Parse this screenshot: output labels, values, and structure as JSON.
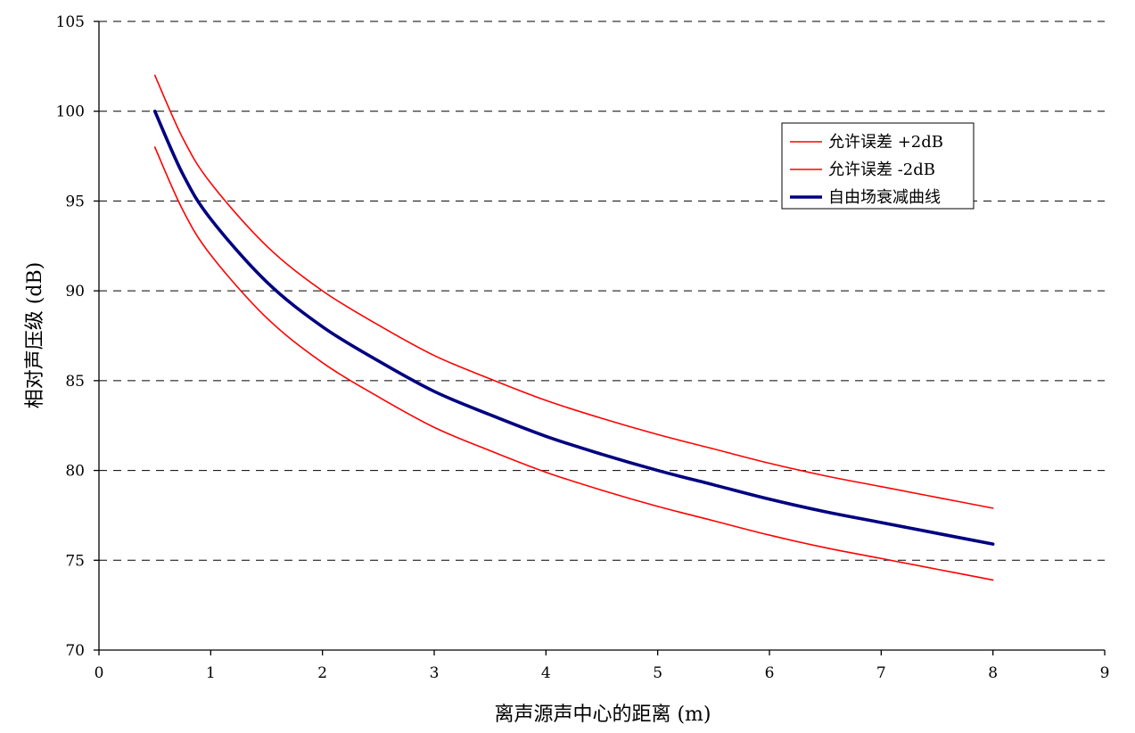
{
  "chart_data": {
    "type": "line",
    "xlabel": "离声源声中心的距离 (m)",
    "ylabel": "相对声压级 (dB)",
    "xlim": [
      0,
      9
    ],
    "ylim": [
      70,
      105
    ],
    "x_ticks": [
      "0",
      "1",
      "2",
      "3",
      "4",
      "5",
      "6",
      "7",
      "8",
      "9"
    ],
    "y_ticks": [
      "70",
      "75",
      "80",
      "85",
      "90",
      "95",
      "100",
      "105"
    ],
    "grid": "horizontal-dashed",
    "legend_position": "top-right",
    "x": [
      0.5,
      0.75,
      1,
      1.5,
      2,
      2.5,
      3,
      3.5,
      4,
      4.5,
      5,
      5.5,
      6,
      6.5,
      7,
      7.5,
      8
    ],
    "series": [
      {
        "name": "允许误差 +2dB",
        "color": "#ff0000",
        "width": "thin",
        "values": [
          102,
          98.5,
          96,
          92.5,
          90,
          88.1,
          86.4,
          85.1,
          83.9,
          82.9,
          82,
          81.2,
          80.4,
          79.7,
          79.1,
          78.5,
          77.9
        ]
      },
      {
        "name": "允许误差 -2dB",
        "color": "#ff0000",
        "width": "thin",
        "values": [
          98,
          94.5,
          92,
          88.5,
          86,
          84.1,
          82.4,
          81.1,
          79.9,
          78.9,
          78,
          77.2,
          76.4,
          75.7,
          75.1,
          74.5,
          73.9
        ]
      },
      {
        "name": "自由场衰减曲线",
        "color": "#000080",
        "width": "thick",
        "values": [
          100,
          96.5,
          94,
          90.5,
          88,
          86.1,
          84.4,
          83.1,
          81.9,
          80.9,
          80,
          79.2,
          78.4,
          77.7,
          77.1,
          76.5,
          75.9
        ]
      }
    ]
  }
}
